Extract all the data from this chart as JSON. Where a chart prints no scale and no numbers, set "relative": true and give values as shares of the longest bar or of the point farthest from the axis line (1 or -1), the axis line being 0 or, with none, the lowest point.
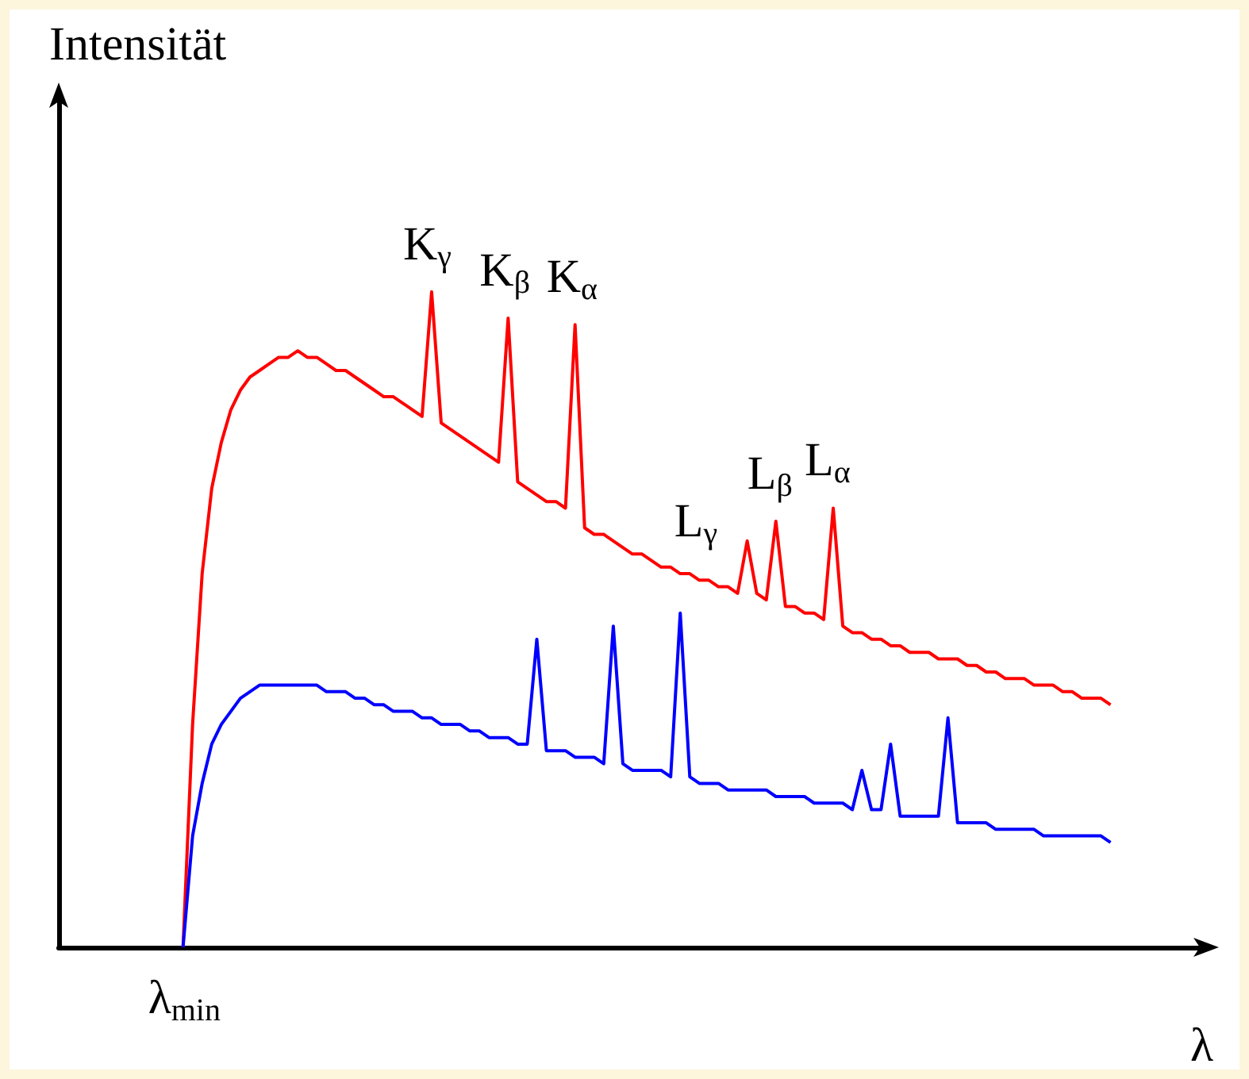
{
  "chart_data": {
    "type": "line",
    "relative": true,
    "marker": "none",
    "xlabel": "λ",
    "ylabel": "Intensität",
    "categories": [
      null,
      null,
      null,
      null,
      null,
      null,
      null,
      null,
      null,
      null,
      null,
      null,
      null,
      null,
      null,
      null,
      null,
      null,
      null,
      null,
      null,
      null,
      null,
      null,
      null,
      null,
      null,
      null,
      null,
      null,
      null,
      null,
      null,
      null,
      null,
      null,
      null,
      null,
      null,
      null,
      null,
      null,
      null,
      null,
      null,
      null,
      null,
      null,
      null,
      null,
      null,
      null,
      null,
      null,
      null,
      null,
      null,
      null,
      null,
      null,
      null,
      null,
      null,
      null,
      null,
      null,
      null,
      null,
      null,
      null,
      null,
      null,
      null,
      null,
      null,
      null,
      null,
      null,
      null,
      null,
      null,
      null,
      null,
      null,
      null,
      null,
      null,
      null,
      null,
      null,
      null,
      null,
      null,
      null,
      null,
      null,
      null,
      null,
      null,
      null,
      null,
      null,
      null,
      null,
      null,
      null,
      null,
      null,
      null,
      null,
      null,
      null,
      null,
      null,
      null,
      null,
      null,
      null,
      null,
      null,
      null
    ],
    "series": [
      {
        "color": "#ff0000",
        "values": [
          null,
          null,
          null,
          null,
          null,
          null,
          null,
          null,
          null,
          null,
          null,
          null,
          null,
          0,
          0.34,
          0.57,
          0.7,
          0.77,
          0.82,
          0.85,
          0.87,
          0.88,
          0.89,
          0.9,
          0.9,
          0.91,
          0.9,
          0.9,
          0.89,
          0.88,
          0.88,
          0.87,
          0.86,
          0.85,
          0.84,
          0.84,
          0.83,
          0.82,
          0.81,
          1.0,
          0.8,
          0.79,
          0.78,
          0.77,
          0.76,
          0.75,
          0.74,
          0.96,
          0.71,
          0.7,
          0.69,
          0.68,
          0.68,
          0.67,
          0.95,
          0.64,
          0.63,
          0.63,
          0.62,
          0.61,
          0.6,
          0.6,
          0.59,
          0.58,
          0.58,
          0.57,
          0.57,
          0.56,
          0.56,
          0.55,
          0.55,
          0.54,
          0.62,
          0.54,
          0.53,
          0.65,
          0.52,
          0.52,
          0.51,
          0.51,
          0.5,
          0.67,
          0.49,
          0.48,
          0.48,
          0.47,
          0.47,
          0.46,
          0.46,
          0.45,
          0.45,
          0.45,
          0.44,
          0.44,
          0.44,
          0.43,
          0.43,
          0.42,
          0.42,
          0.41,
          0.41,
          0.41,
          0.4,
          0.4,
          0.4,
          0.39,
          0.39,
          0.38,
          0.38,
          0.38,
          0.37,
          null,
          null,
          null,
          null,
          null,
          null,
          null,
          null,
          null,
          null
        ]
      },
      {
        "color": "#0000ff",
        "values": [
          null,
          null,
          null,
          null,
          null,
          null,
          null,
          null,
          null,
          null,
          null,
          null,
          null,
          0,
          0.17,
          0.25,
          0.31,
          0.34,
          0.36,
          0.38,
          0.39,
          0.4,
          0.4,
          0.4,
          0.4,
          0.4,
          0.4,
          0.4,
          0.39,
          0.39,
          0.39,
          0.38,
          0.38,
          0.37,
          0.37,
          0.36,
          0.36,
          0.36,
          0.35,
          0.35,
          0.34,
          0.34,
          0.34,
          0.33,
          0.33,
          0.32,
          0.32,
          0.32,
          0.31,
          0.31,
          0.47,
          0.3,
          0.3,
          0.3,
          0.29,
          0.29,
          0.29,
          0.28,
          0.49,
          0.28,
          0.27,
          0.27,
          0.27,
          0.27,
          0.26,
          0.51,
          0.26,
          0.25,
          0.25,
          0.25,
          0.24,
          0.24,
          0.24,
          0.24,
          0.24,
          0.23,
          0.23,
          0.23,
          0.23,
          0.22,
          0.22,
          0.22,
          0.22,
          0.21,
          0.27,
          0.21,
          0.21,
          0.31,
          0.2,
          0.2,
          0.2,
          0.2,
          0.2,
          0.35,
          0.19,
          0.19,
          0.19,
          0.19,
          0.18,
          0.18,
          0.18,
          0.18,
          0.18,
          0.17,
          0.17,
          0.17,
          0.17,
          0.17,
          0.17,
          0.17,
          0.16,
          null,
          null,
          null,
          null,
          null,
          null,
          null,
          null,
          null,
          null
        ]
      }
    ],
    "annotations": [
      {
        "text": "λ$_{min}$",
        "y": 0
      },
      {
        "text": "K$_{γ}$",
        "y": 1.0
      },
      {
        "text": "K$_{β}$",
        "y": 0.96
      },
      {
        "text": "K$_{α}$",
        "y": 0.95
      },
      "L$_{γ}$",
      {
        "text": "L$_{β}$",
        "y": 0.65
      },
      {
        "text": "L$_{α}$",
        "y": 0.67
      }
    ]
  }
}
